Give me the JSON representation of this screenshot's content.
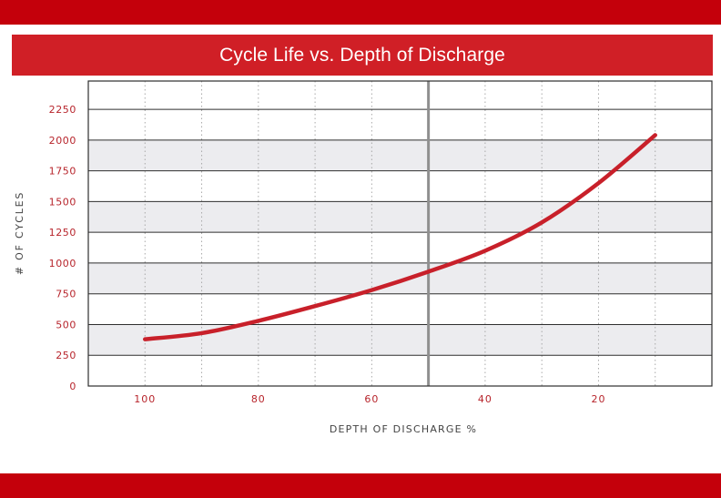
{
  "chart_data": {
    "type": "line",
    "title": "Cycle Life vs. Depth of Discharge",
    "xlabel": "DEPTH OF DISCHARGE %",
    "ylabel": "# OF CYCLES",
    "x_ticks": [
      100,
      80,
      60,
      40,
      20
    ],
    "y_ticks": [
      0,
      250,
      500,
      750,
      1000,
      1250,
      1500,
      1750,
      2000,
      2250
    ],
    "xlim": [
      110,
      0
    ],
    "ylim": [
      0,
      2480
    ],
    "reference_line_x": 50,
    "grid": true,
    "series": [
      {
        "color": "#c8202a",
        "x": [
          100,
          90,
          80,
          70,
          60,
          50,
          40,
          30,
          20,
          10
        ],
        "y": [
          380,
          430,
          530,
          650,
          780,
          930,
          1100,
          1330,
          1650,
          2040
        ]
      }
    ]
  },
  "colors": {
    "band": "#c4000b",
    "title_bar": "#d01f26",
    "line": "#c8202a",
    "tick_label": "#b7242b",
    "axis_title": "#444444",
    "stripe": "#ececef"
  }
}
